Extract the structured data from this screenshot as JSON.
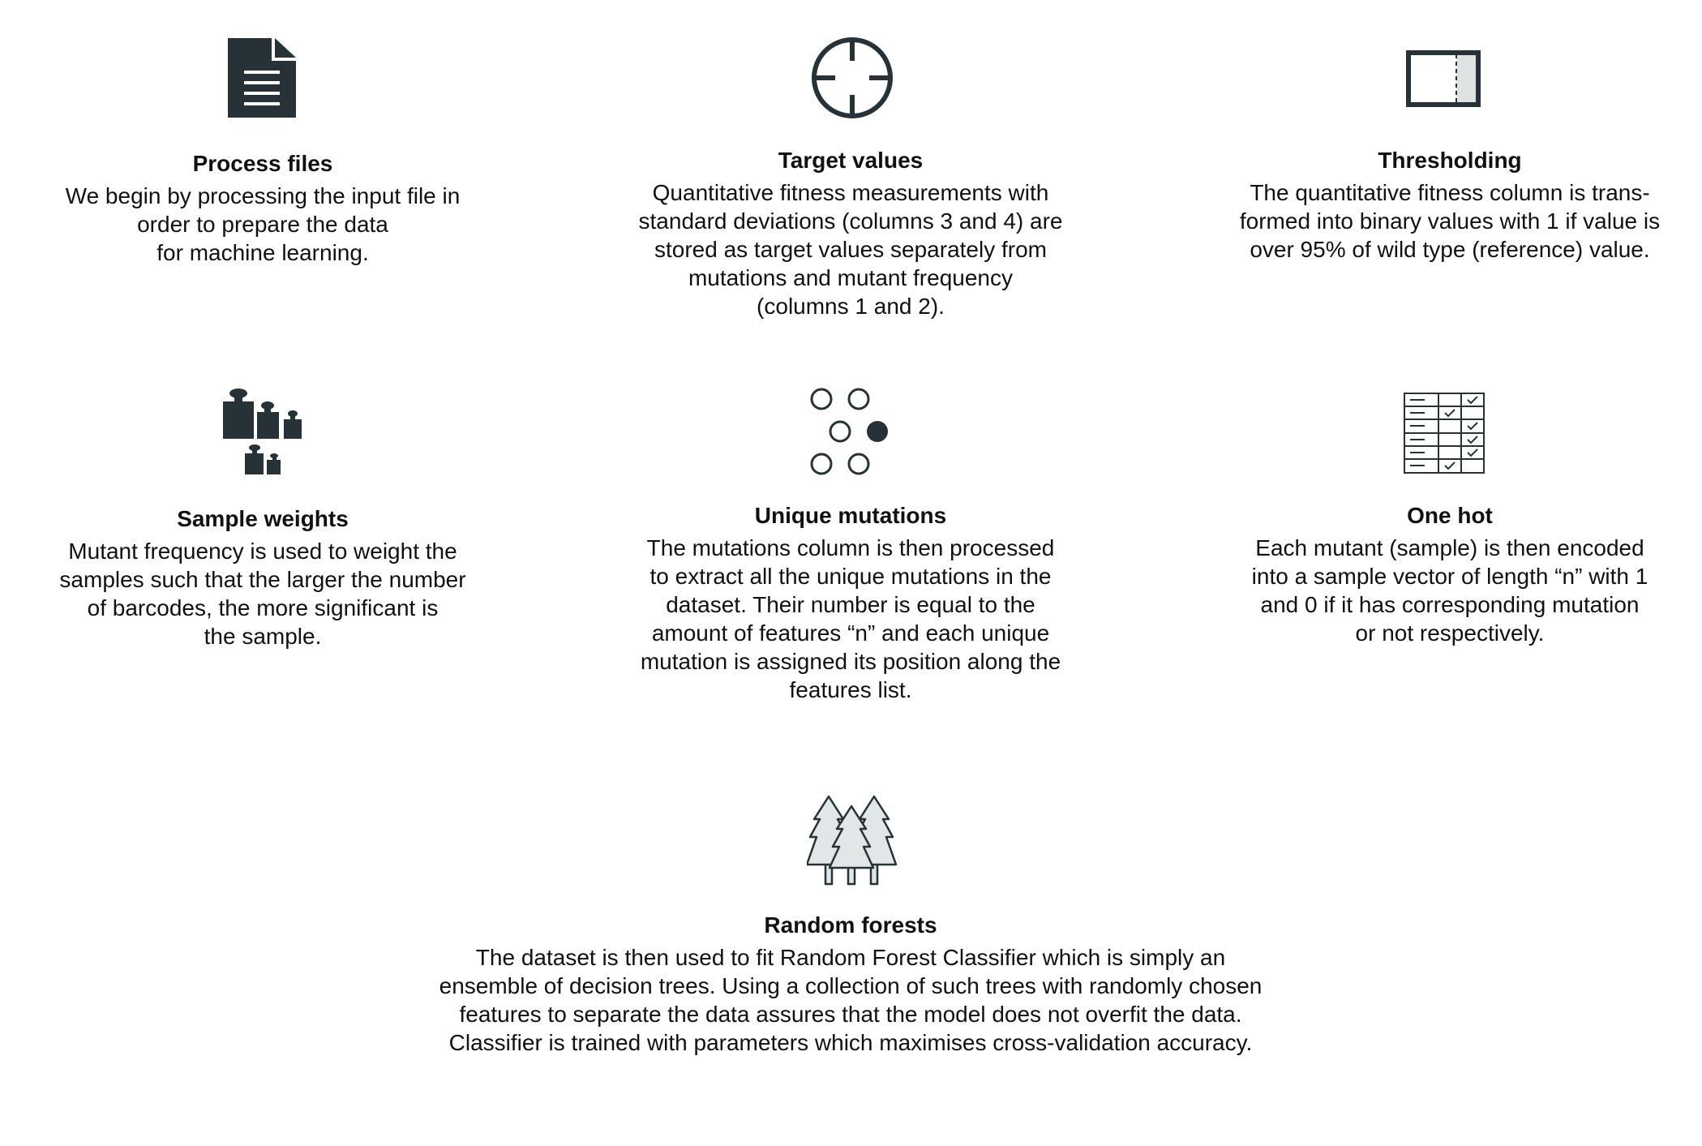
{
  "steps": [
    {
      "title": "Process files",
      "icon": "document-icon",
      "lines": [
        "We begin by processing the input file in",
        "order to prepare the data",
        "for machine learning."
      ]
    },
    {
      "title": "Target values",
      "icon": "crosshair-icon",
      "lines": [
        "Quantitative fitness measurements with",
        "standard deviations (columns 3 and 4) are",
        "stored as target values separately from",
        "mutations and mutant frequency",
        "(columns 1 and 2)."
      ]
    },
    {
      "title": "Thresholding",
      "icon": "threshold-icon",
      "lines": [
        "The quantitative fitness column is trans-",
        "formed into binary values with 1 if value is",
        "over 95% of wild type (reference) value."
      ]
    },
    {
      "title": "Sample weights",
      "icon": "weights-icon",
      "lines": [
        "Mutant frequency is used to weight the",
        "samples such that the larger the number",
        "of barcodes, the more significant is",
        "the sample."
      ]
    },
    {
      "title": "Unique mutations",
      "icon": "dots-icon",
      "lines": [
        "The mutations column is then processed",
        "to extract all the unique mutations in the",
        "dataset. Their number is equal to the",
        "amount of features “n” and each unique",
        "mutation is assigned its position along the",
        "features list."
      ]
    },
    {
      "title": "One hot",
      "icon": "checklist-table-icon",
      "lines": [
        "Each mutant (sample) is then encoded",
        "into a sample vector of length “n” with 1",
        "and 0 if it has corresponding mutation",
        "or not respectively."
      ]
    },
    {
      "title": "Random forests",
      "icon": "trees-icon",
      "lines": [
        "The dataset is then used to fit Random Forest Classifier which is simply an",
        "ensemble of decision trees. Using a collection of such trees with randomly chosen",
        "features to separate the data assures that the model does not overfit the data.",
        "Classifier is trained with parameters which maximises cross-validation accuracy."
      ]
    }
  ],
  "colors": {
    "icon": "#263238",
    "text": "#111111",
    "light_fill": "#dfe2e2"
  }
}
